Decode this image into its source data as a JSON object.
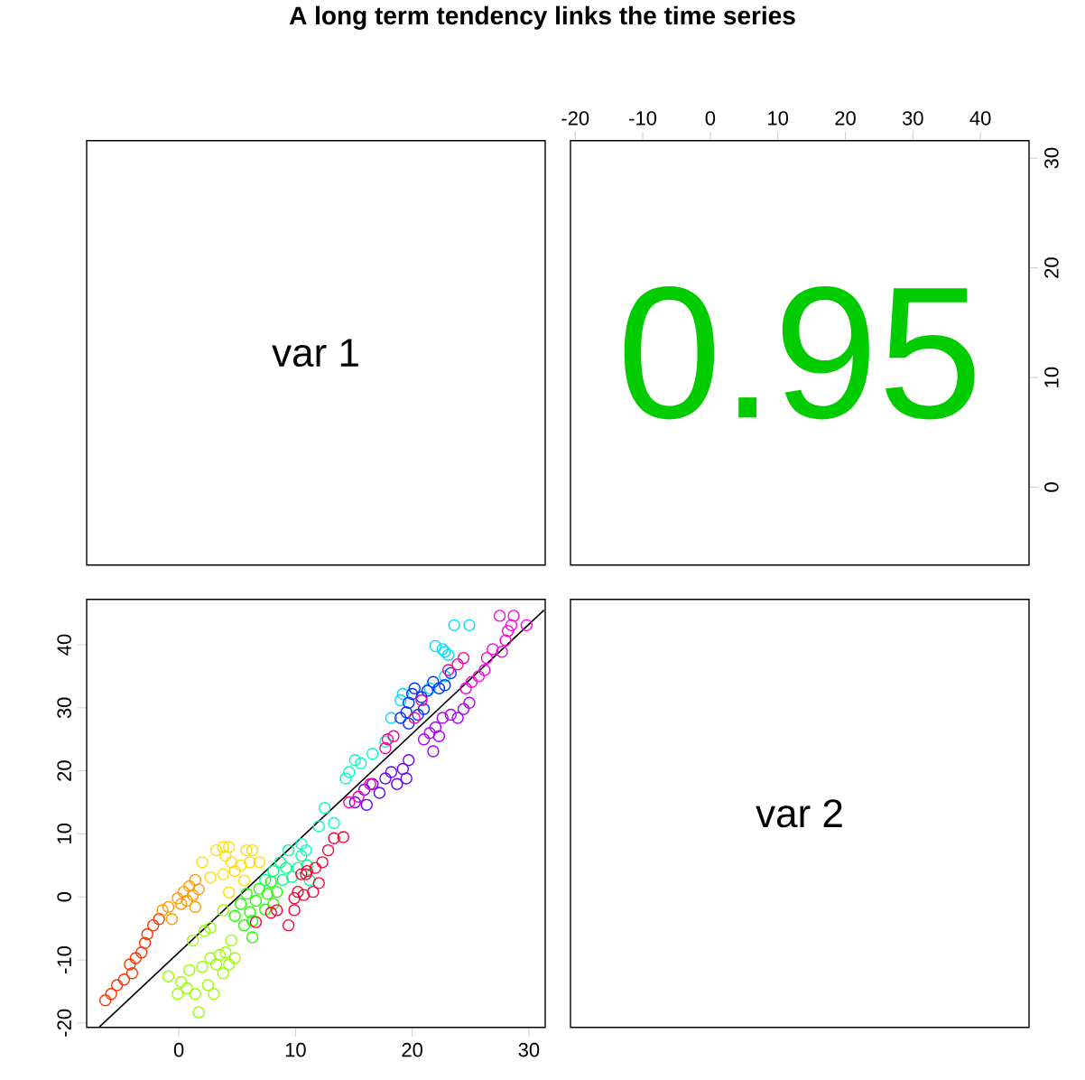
{
  "chart_data": [
    {
      "type": "other",
      "title": "A long term tendency links the time series",
      "annotations": [
        "var 1"
      ]
    },
    {
      "type": "scatter",
      "annotations": [
        "0.95"
      ],
      "color": "#00cc00",
      "xlim": [
        -20.7,
        47.2
      ],
      "ylim": [
        -7.1,
        31.6
      ],
      "xticks": [
        -20,
        -10,
        0,
        10,
        20,
        30,
        40
      ],
      "yticks": [
        0,
        10,
        20,
        30
      ]
    },
    {
      "type": "scatter",
      "marker": "circle",
      "xlim": [
        -7.9,
        31.4
      ],
      "ylim": [
        -20.7,
        47.2
      ],
      "xticks": [
        0,
        10,
        20,
        30
      ],
      "yticks": [
        -20,
        -10,
        0,
        10,
        20,
        30,
        40
      ],
      "series": [
        {
          "color": "#ff3300",
          "x": [
            -6.3,
            -5.8,
            -5.3,
            -4.7,
            -4.2,
            -4.0,
            -3.7,
            -3.2,
            -2.9,
            -2.7,
            -2.2,
            -1.7
          ],
          "values": [
            -16.4,
            -15.4,
            -14.0,
            -13.1,
            -10.7,
            -12.1,
            -9.7,
            -8.8,
            -7.3,
            -5.9,
            -4.5,
            -3.5
          ]
        },
        {
          "color": "#ff9900",
          "x": [
            -1.4,
            -0.9,
            -0.6,
            -0.1,
            0.2,
            0.4,
            0.7,
            0.9,
            1.2,
            1.4,
            1.4,
            1.7
          ],
          "values": [
            -2.1,
            -1.6,
            -3.5,
            -0.2,
            -1.1,
            0.8,
            -0.6,
            1.7,
            0.3,
            2.7,
            -1.6,
            1.2
          ]
        },
        {
          "color": "#ffdd00",
          "x": [
            2.0,
            2.7,
            3.2,
            3.8,
            4.0,
            4.3,
            4.5,
            4.8,
            5.3,
            5.8,
            6.1,
            6.3,
            6.9,
            5.6,
            4.3,
            3.8
          ],
          "values": [
            5.5,
            3.1,
            7.4,
            7.9,
            6.5,
            7.9,
            5.5,
            4.1,
            5.0,
            7.4,
            5.5,
            7.4,
            5.5,
            2.6,
            0.7,
            3.6
          ]
        },
        {
          "color": "#99ff00",
          "x": [
            -0.9,
            -0.1,
            0.2,
            0.7,
            0.9,
            1.4,
            1.7,
            2.0,
            2.5,
            2.7,
            3.0,
            3.2,
            3.5,
            3.8,
            4.0,
            4.3,
            4.5,
            4.8,
            2.7,
            2.2,
            1.2,
            3.8
          ],
          "values": [
            -12.6,
            -15.4,
            -13.5,
            -14.5,
            -11.6,
            -15.4,
            -18.3,
            -11.1,
            -14.0,
            -9.7,
            -15.4,
            -10.7,
            -9.2,
            -12.1,
            -8.8,
            -10.7,
            -6.9,
            -9.7,
            -4.9,
            -5.4,
            -6.9,
            -2.1
          ]
        },
        {
          "color": "#22ff00",
          "x": [
            4.8,
            5.3,
            5.6,
            5.8,
            6.1,
            6.3,
            6.6,
            6.9,
            7.4,
            7.6,
            7.9,
            8.1,
            8.4,
            6.3
          ],
          "values": [
            -3.0,
            -1.1,
            -4.5,
            0.5,
            -2.4,
            -3.8,
            -0.6,
            1.3,
            -2.0,
            0.5,
            2.4,
            -1.1,
            0.8,
            -6.4
          ]
        },
        {
          "color": "#00ff88",
          "x": [
            7.4,
            8.1,
            8.7,
            9.2,
            9.4,
            8.9,
            9.7,
            10.5,
            10.2,
            11.0,
            11.2
          ],
          "values": [
            2.7,
            4.1,
            5.5,
            4.6,
            7.4,
            2.7,
            3.2,
            6.5,
            4.6,
            5.0,
            2.7
          ]
        },
        {
          "color": "#00ffcc",
          "x": [
            10.5,
            10.9,
            12.0,
            12.5,
            13.3,
            14.3,
            14.6,
            15.1,
            15.6,
            16.6,
            17.7
          ],
          "values": [
            8.4,
            7.4,
            11.2,
            14.1,
            11.7,
            18.8,
            19.8,
            21.7,
            21.2,
            22.7,
            24.6
          ]
        },
        {
          "color": "#00ddff",
          "x": [
            18.2,
            19.0,
            19.2,
            22.0,
            22.6,
            22.8,
            23.1,
            23.6,
            24.9,
            21.5,
            22.8
          ],
          "values": [
            28.4,
            31.2,
            32.2,
            39.8,
            39.3,
            38.9,
            38.4,
            43.1,
            43.1,
            33.1,
            35.0
          ]
        },
        {
          "color": "#0033ff",
          "x": [
            19.0,
            19.5,
            19.7,
            20.0,
            20.2,
            20.5,
            20.8,
            21.3,
            21.8,
            22.3,
            22.8,
            23.3,
            21.0,
            19.7
          ],
          "values": [
            28.4,
            29.3,
            30.8,
            32.2,
            33.1,
            28.9,
            31.7,
            32.7,
            34.1,
            33.1,
            33.6,
            35.5,
            29.8,
            27.5
          ]
        },
        {
          "color": "#6600ff",
          "x": [
            15.1,
            15.9,
            16.1,
            16.6,
            17.2,
            17.7,
            18.2,
            18.7,
            19.2,
            19.7,
            19.5
          ],
          "values": [
            15.0,
            17.0,
            14.6,
            17.9,
            16.5,
            18.8,
            19.8,
            17.9,
            20.3,
            21.7,
            18.8
          ]
        },
        {
          "color": "#aa00ff",
          "x": [
            21.0,
            21.5,
            21.8,
            22.0,
            22.3,
            22.6,
            23.3,
            23.9,
            24.4,
            24.9
          ],
          "values": [
            25.0,
            26.0,
            23.1,
            26.9,
            25.5,
            28.4,
            28.9,
            28.4,
            29.8,
            30.8
          ]
        },
        {
          "color": "#ff00dd",
          "x": [
            24.6,
            25.1,
            25.7,
            26.2,
            26.4,
            26.9,
            27.7,
            28.0,
            28.2,
            28.5,
            27.5,
            28.7,
            29.8
          ],
          "values": [
            33.1,
            34.1,
            35.0,
            36.0,
            37.9,
            39.3,
            38.9,
            40.7,
            42.2,
            43.1,
            44.6,
            44.6,
            43.1
          ]
        },
        {
          "color": "#ff0099",
          "x": [
            14.6,
            15.4,
            16.4,
            17.7,
            17.9,
            18.4,
            20.2,
            20.8,
            23.1,
            23.9,
            24.4
          ],
          "values": [
            15.0,
            15.9,
            17.9,
            23.6,
            25.0,
            25.5,
            28.4,
            31.2,
            36.0,
            36.9,
            37.9
          ]
        },
        {
          "color": "#ff0033",
          "x": [
            9.9,
            10.5,
            11.0,
            11.5,
            12.0,
            8.4,
            7.9,
            6.6,
            9.4,
            10.2,
            9.9,
            10.7,
            11.7,
            12.3,
            12.8,
            13.3,
            14.1,
            10.9
          ],
          "values": [
            -0.2,
            3.6,
            4.1,
            0.8,
            2.2,
            -2.1,
            -2.5,
            -4.0,
            -4.5,
            0.8,
            -2.1,
            0.3,
            4.6,
            5.5,
            7.4,
            9.3,
            9.5,
            3.6
          ]
        },
        {
          "type": "line",
          "marker": "none",
          "color": "#000000",
          "x": [
            -6.8,
            31.3
          ],
          "values": [
            -20.6,
            45.5
          ]
        }
      ]
    },
    {
      "type": "other",
      "annotations": [
        "var 2"
      ]
    }
  ]
}
